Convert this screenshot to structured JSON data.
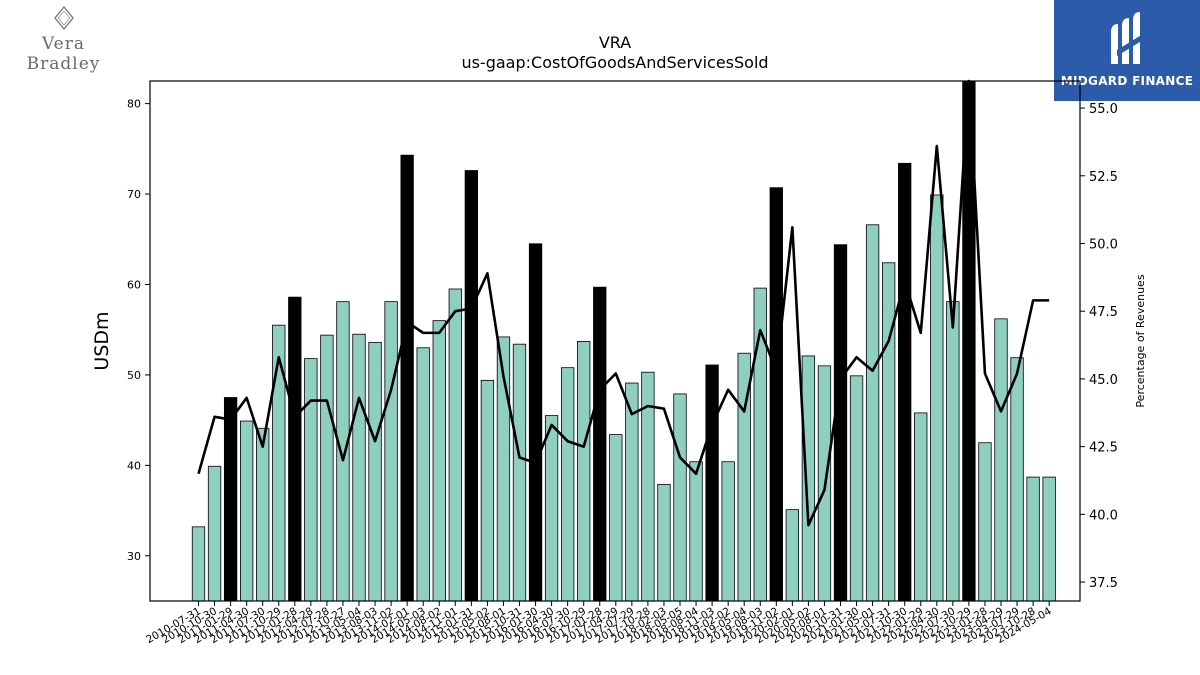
{
  "branding": {
    "left_logo_text": "Vera Bradley",
    "right_logo_text": "MIDGARD FINANCE",
    "right_logo_bg": "#2c5bab"
  },
  "chart_data": {
    "type": "bar",
    "title": "VRA",
    "subtitle": "us-gaap:CostOfGoodsAndServicesSold",
    "ylabel": "USDm",
    "y2label": "Percentage of Revenues",
    "ylim": [
      25,
      82.5
    ],
    "y2lim": [
      36.8,
      56.0
    ],
    "yticks": [
      30,
      40,
      50,
      60,
      70,
      80
    ],
    "y2ticks": [
      "37.5",
      "40.0",
      "42.5",
      "45.0",
      "47.5",
      "50.0",
      "52.5",
      "55.0"
    ],
    "bar_color": "#8ecfc0",
    "highlight_color": "#000000",
    "line_color": "#000000",
    "categories": [
      "2010-07-31",
      "2010-10-30",
      "2011-01-29",
      "2011-04-30",
      "2011-07-30",
      "2011-10-29",
      "2012-01-28",
      "2012-04-28",
      "2012-07-28",
      "2012-10-27",
      "2013-05-04",
      "2013-08-03",
      "2013-11-02",
      "2014-02-01",
      "2014-05-03",
      "2014-08-02",
      "2014-11-01",
      "2015-01-31",
      "2015-05-02",
      "2015-08-01",
      "2015-10-31",
      "2016-01-30",
      "2016-04-30",
      "2016-07-30",
      "2016-10-29",
      "2017-01-28",
      "2017-04-29",
      "2017-07-29",
      "2017-10-28",
      "2018-02-03",
      "2018-05-05",
      "2018-08-04",
      "2018-11-03",
      "2019-02-02",
      "2019-05-04",
      "2019-08-03",
      "2019-11-02",
      "2020-02-01",
      "2020-05-02",
      "2020-08-01",
      "2020-10-31",
      "2021-01-30",
      "2021-05-01",
      "2021-07-31",
      "2021-10-30",
      "2022-01-29",
      "2022-04-30",
      "2022-07-30",
      "2022-10-29",
      "2023-01-28",
      "2023-04-29",
      "2023-07-29",
      "2023-10-28",
      "2024-05-04"
    ],
    "series": [
      {
        "type": "bar",
        "values": [
          33.2,
          39.9,
          47.5,
          44.9,
          44.1,
          55.5,
          58.6,
          51.8,
          54.4,
          58.1,
          54.5,
          53.6,
          58.1,
          74.3,
          53.0,
          56.0,
          59.5,
          72.6,
          49.4,
          54.2,
          53.4,
          64.5,
          45.5,
          50.8,
          53.7,
          59.7,
          43.4,
          49.1,
          50.3,
          37.9,
          47.9,
          40.4,
          51.1,
          40.4,
          52.4,
          59.6,
          70.7,
          35.1,
          52.1,
          51.0,
          64.4,
          49.9,
          66.6,
          62.4,
          73.4,
          45.8,
          69.9,
          58.1,
          82.5,
          42.5,
          56.2,
          51.9,
          38.7,
          38.7
        ],
        "highlight": [
          false,
          false,
          true,
          false,
          false,
          false,
          true,
          false,
          false,
          false,
          false,
          false,
          false,
          true,
          false,
          false,
          false,
          true,
          false,
          false,
          false,
          true,
          false,
          false,
          false,
          true,
          false,
          false,
          false,
          false,
          false,
          false,
          true,
          false,
          false,
          false,
          true,
          false,
          false,
          false,
          true,
          false,
          false,
          false,
          true,
          false,
          false,
          false,
          true,
          false,
          false,
          false,
          false,
          false
        ]
      },
      {
        "type": "line",
        "axis": "right",
        "values": [
          41.5,
          43.6,
          43.5,
          44.3,
          42.5,
          45.8,
          43.6,
          44.2,
          44.2,
          42.0,
          44.3,
          42.7,
          44.6,
          47.1,
          46.7,
          46.7,
          47.5,
          47.6,
          48.9,
          45.1,
          42.1,
          41.9,
          43.3,
          42.7,
          42.5,
          44.6,
          45.2,
          43.7,
          44.0,
          43.9,
          42.1,
          41.5,
          43.3,
          44.6,
          43.8,
          46.8,
          45.3,
          50.6,
          39.6,
          40.9,
          45.0,
          45.8,
          45.3,
          46.4,
          48.6,
          46.7,
          53.6,
          46.9,
          56.1,
          45.2,
          43.8,
          45.2,
          47.9,
          47.9
        ]
      }
    ]
  }
}
